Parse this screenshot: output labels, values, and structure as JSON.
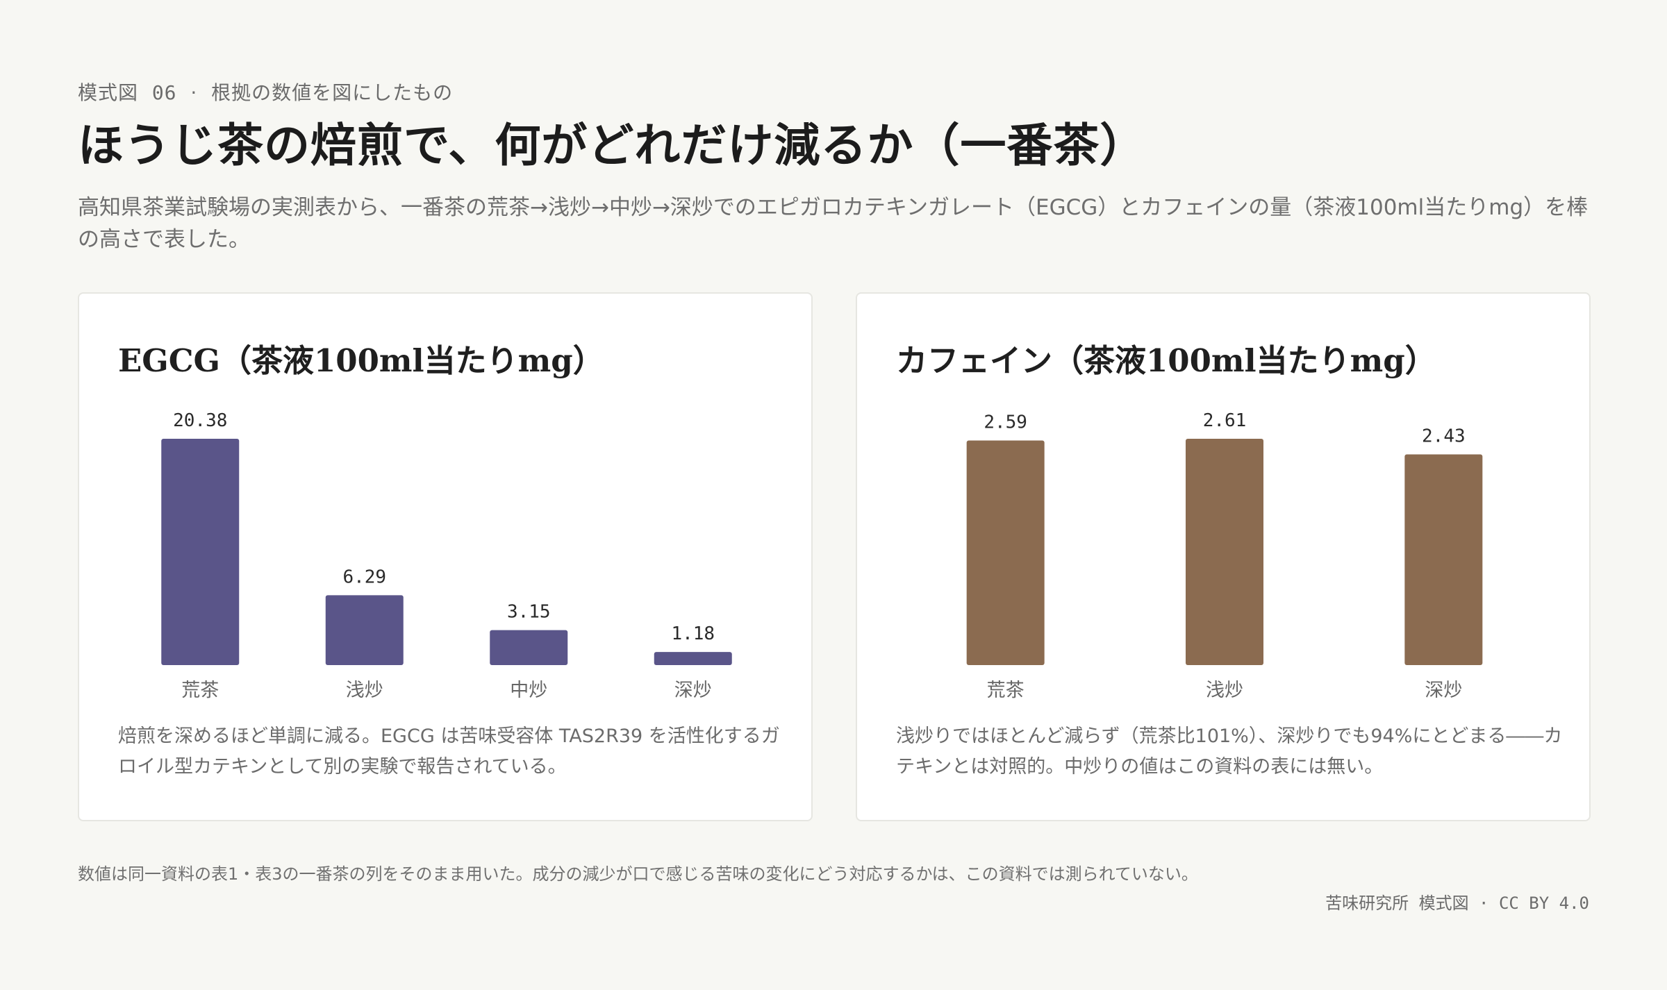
{
  "header": {
    "eyebrow_label": "模式図",
    "eyebrow_num": "06",
    "eyebrow_sep": "·",
    "eyebrow_text": "根拠の数値を図にしたもの",
    "title": "ほうじ茶の焙煎で、何がどれだけ減るか（一番茶）",
    "subtitle": "高知県茶業試験場の実測表から、一番茶の荒茶→浅炒→中炒→深炒でのエピガロカテキンガレート（EGCG）とカフェインの量（茶液100ml当たりmg）を棒の高さで表した。"
  },
  "colors": {
    "egcg": "#5a5589",
    "caffeine": "#8b6b50",
    "background": "#f7f7f3"
  },
  "chart_data": [
    {
      "type": "bar",
      "title": "EGCG（茶液100ml当たりmg）",
      "categories": [
        "荒茶",
        "浅炒",
        "中炒",
        "深炒"
      ],
      "values": [
        20.38,
        6.29,
        3.15,
        1.18
      ],
      "value_labels": [
        "20.38",
        "6.29",
        "3.15",
        "1.18"
      ],
      "color": "#5a5589",
      "xlabel": "",
      "ylabel": "",
      "ylim": [
        0,
        20.38
      ],
      "grid": false,
      "note": "焙煎を深めるほど単調に減る。EGCG は苦味受容体 TAS2R39 を活性化するガロイル型カテキンとして別の実験で報告されている。"
    },
    {
      "type": "bar",
      "title": "カフェイン（茶液100ml当たりmg）",
      "categories": [
        "荒茶",
        "浅炒",
        "深炒"
      ],
      "values": [
        2.59,
        2.61,
        2.43
      ],
      "value_labels": [
        "2.59",
        "2.61",
        "2.43"
      ],
      "color": "#8b6b50",
      "xlabel": "",
      "ylabel": "",
      "ylim": [
        0,
        2.61
      ],
      "grid": false,
      "note": "浅炒りではほとんど減らず（荒茶比101%）、深炒りでも94%にとどまる――カテキンとは対照的。中炒りの値はこの資料の表には無い。"
    }
  ],
  "footer": {
    "footnote": "数値は同一資料の表1・表3の一番茶の列をそのまま用いた。成分の減少が口で感じる苦味の変化にどう対応するかは、この資料では測られていない。",
    "credit": "苦味研究所 模式図 · CC BY 4.0"
  }
}
